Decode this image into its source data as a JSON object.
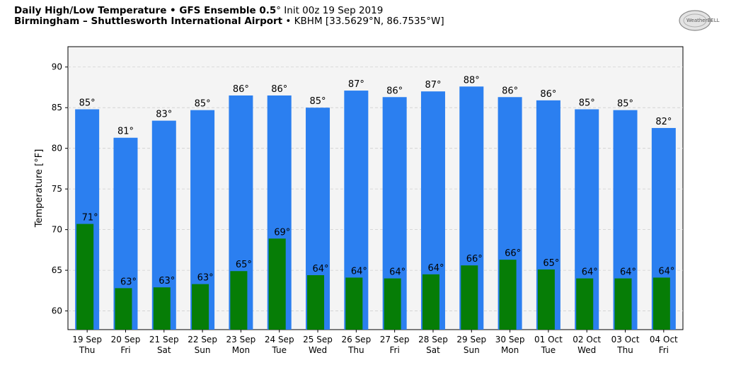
{
  "header": {
    "title_bold": "Daily High/Low Temperature • GFS Ensemble 0.5",
    "title_deg": "°",
    "title_rest": " Init 00z 19 Sep 2019",
    "station_bold": "Birmingham – Shuttlesworth International Airport",
    "station_rest": " • KBHM [33.5629°N, 86.7535°W]"
  },
  "logo": {
    "text": "WeatherBELL",
    "icon": "weatherbell-logo-icon"
  },
  "colors": {
    "high": "#2b7ff0",
    "low": "#067d06",
    "plot_bg": "#f4f4f4",
    "grid": "#cfcfcf"
  },
  "chart_data": {
    "type": "bar",
    "title": "Daily High/Low Temperature",
    "ylabel": "Temperature [°F]",
    "xlabel": "",
    "ylim": [
      57.7,
      92.5
    ],
    "yticks": [
      60,
      65,
      70,
      75,
      80,
      85,
      90
    ],
    "grid": true,
    "categories": [
      "19 Sep",
      "20 Sep",
      "21 Sep",
      "22 Sep",
      "23 Sep",
      "24 Sep",
      "25 Sep",
      "26 Sep",
      "27 Sep",
      "28 Sep",
      "29 Sep",
      "30 Sep",
      "01 Oct",
      "02 Oct",
      "03 Oct",
      "04 Oct"
    ],
    "weekdays": [
      "Thu",
      "Fri",
      "Sat",
      "Sun",
      "Mon",
      "Tue",
      "Wed",
      "Thu",
      "Fri",
      "Sat",
      "Sun",
      "Mon",
      "Tue",
      "Wed",
      "Thu",
      "Fri"
    ],
    "series": [
      {
        "name": "High",
        "values": [
          84.8,
          81.3,
          83.4,
          84.7,
          86.5,
          86.5,
          85.0,
          87.1,
          86.3,
          87.0,
          87.6,
          86.3,
          85.9,
          84.8,
          84.7,
          82.5
        ],
        "labels": [
          "85°",
          "81°",
          "83°",
          "85°",
          "86°",
          "86°",
          "85°",
          "87°",
          "86°",
          "87°",
          "88°",
          "86°",
          "86°",
          "85°",
          "85°",
          "82°"
        ]
      },
      {
        "name": "Low",
        "values": [
          70.7,
          62.8,
          62.9,
          63.3,
          64.9,
          68.9,
          64.4,
          64.1,
          64.0,
          64.5,
          65.6,
          66.3,
          65.1,
          64.0,
          64.0,
          64.1
        ],
        "labels": [
          "71°",
          "63°",
          "63°",
          "63°",
          "65°",
          "69°",
          "64°",
          "64°",
          "64°",
          "64°",
          "66°",
          "66°",
          "65°",
          "64°",
          "64°",
          "64°"
        ]
      }
    ]
  }
}
